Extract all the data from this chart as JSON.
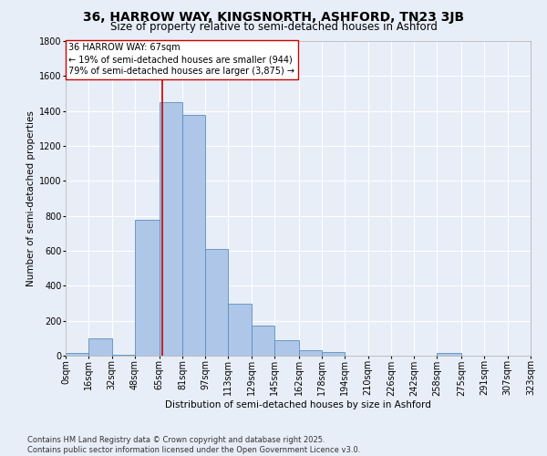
{
  "title": "36, HARROW WAY, KINGSNORTH, ASHFORD, TN23 3JB",
  "subtitle": "Size of property relative to semi-detached houses in Ashford",
  "xlabel": "Distribution of semi-detached houses by size in Ashford",
  "ylabel": "Number of semi-detached properties",
  "bin_edges": [
    0,
    16,
    32,
    48,
    65,
    81,
    97,
    113,
    129,
    145,
    162,
    178,
    194,
    210,
    226,
    242,
    258,
    275,
    291,
    307,
    323
  ],
  "bin_labels": [
    "0sqm",
    "16sqm",
    "32sqm",
    "48sqm",
    "65sqm",
    "81sqm",
    "97sqm",
    "113sqm",
    "129sqm",
    "145sqm",
    "162sqm",
    "178sqm",
    "194sqm",
    "210sqm",
    "226sqm",
    "242sqm",
    "258sqm",
    "275sqm",
    "291sqm",
    "307sqm",
    "323sqm"
  ],
  "counts": [
    15,
    100,
    5,
    775,
    1450,
    1380,
    610,
    300,
    170,
    90,
    30,
    20,
    0,
    0,
    0,
    0,
    15,
    0,
    0,
    0
  ],
  "bar_color": "#aec6e8",
  "bar_edge_color": "#5a8fc0",
  "vline_x": 67,
  "vline_color": "#cc0000",
  "annotation_line1": "36 HARROW WAY: 67sqm",
  "annotation_line2": "← 19% of semi-detached houses are smaller (944)",
  "annotation_line3": "79% of semi-detached houses are larger (3,875) →",
  "annotation_box_color": "#ffffff",
  "annotation_box_edge_color": "#cc0000",
  "ylim": [
    0,
    1800
  ],
  "yticks": [
    0,
    200,
    400,
    600,
    800,
    1000,
    1200,
    1400,
    1600,
    1800
  ],
  "bg_color": "#e8eef8",
  "grid_color": "#ffffff",
  "footer_text": "Contains HM Land Registry data © Crown copyright and database right 2025.\nContains public sector information licensed under the Open Government Licence v3.0.",
  "title_fontsize": 10,
  "subtitle_fontsize": 8.5,
  "axis_label_fontsize": 7.5,
  "tick_fontsize": 7,
  "annotation_fontsize": 7,
  "footer_fontsize": 6
}
